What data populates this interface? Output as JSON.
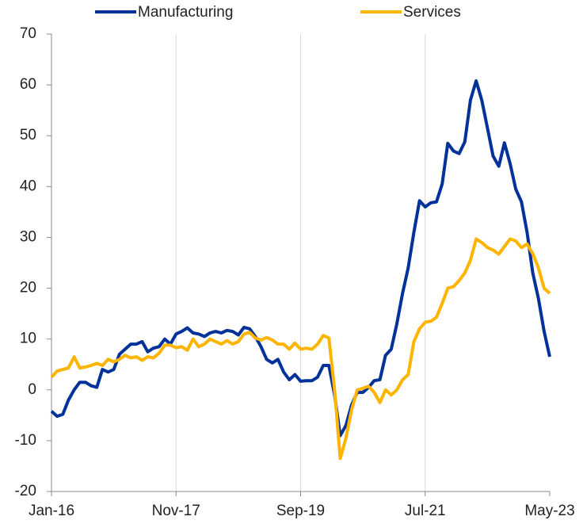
{
  "chart_data": {
    "type": "line",
    "categories": [
      "Jan-16",
      null,
      null,
      null,
      null,
      null,
      null,
      null,
      null,
      null,
      null,
      null,
      null,
      null,
      null,
      null,
      null,
      null,
      null,
      null,
      null,
      null,
      "Nov-17",
      null,
      null,
      null,
      null,
      null,
      null,
      null,
      null,
      null,
      null,
      null,
      null,
      null,
      null,
      null,
      null,
      null,
      null,
      null,
      null,
      null,
      "Sep-19",
      null,
      null,
      null,
      null,
      null,
      null,
      null,
      null,
      null,
      null,
      null,
      null,
      null,
      null,
      null,
      null,
      null,
      null,
      null,
      null,
      null,
      "Jul-21",
      null,
      null,
      null,
      null,
      null,
      null,
      null,
      null,
      null,
      null,
      null,
      null,
      null,
      null,
      null,
      null,
      null,
      null,
      null,
      null,
      null,
      "May-23"
    ],
    "series": [
      {
        "name": "Manufacturing",
        "color": "#003299",
        "values": [
          -4.2,
          -5.2,
          -4.8,
          -2,
          0,
          1.5,
          1.5,
          0.8,
          0.5,
          4,
          3.5,
          4,
          7,
          8,
          9,
          9,
          9.5,
          7.5,
          8.2,
          8.5,
          10,
          9,
          11,
          11.5,
          12.2,
          11.2,
          11,
          10.5,
          11.2,
          11.5,
          11.2,
          11.7,
          11.5,
          10.8,
          12.3,
          12,
          10.5,
          8.5,
          6,
          5.3,
          6,
          3.5,
          2,
          3,
          1.7,
          1.8,
          1.8,
          2.5,
          4.8,
          4.8,
          -1,
          -9,
          -7,
          -3,
          -0.5,
          -0.5,
          0.5,
          1.8,
          2,
          6.8,
          8,
          13,
          19,
          24,
          31,
          37.2,
          36,
          36.8,
          37,
          40.5,
          48.5,
          47,
          46.5,
          48.8,
          57,
          60.8,
          57,
          51.5,
          46,
          44,
          48.6,
          44.5,
          39.5,
          37,
          31,
          23,
          18,
          11.5,
          6.5
        ]
      },
      {
        "name": "Services",
        "color": "#ffb400",
        "values": [
          2.5,
          3.7,
          4,
          4.3,
          6.5,
          4.3,
          4.5,
          4.8,
          5.2,
          4.8,
          6,
          5.5,
          6,
          6.8,
          6.3,
          6.5,
          5.8,
          6.5,
          6.3,
          7.2,
          8.8,
          8.8,
          8.3,
          8.5,
          7.8,
          10,
          8.5,
          9,
          10,
          9.5,
          9,
          9.7,
          9,
          9.5,
          11,
          11.3,
          10.2,
          9.8,
          10.3,
          9.8,
          9,
          9,
          8,
          9.2,
          8,
          8.2,
          8,
          9,
          10.7,
          10.2,
          0,
          -13.5,
          -9.5,
          -4,
          0,
          0.3,
          0.7,
          -0.5,
          -2.5,
          0,
          -1,
          0,
          2,
          3,
          9.5,
          12,
          13.3,
          13.5,
          14.3,
          17,
          20,
          20.3,
          21.5,
          23,
          25.5,
          29.7,
          29,
          28,
          27.5,
          26.7,
          28.2,
          29.7,
          29.3,
          28,
          28.7,
          26.8,
          24,
          20,
          19
        ]
      }
    ],
    "ylim": [
      -20,
      70
    ],
    "yticks": [
      -20,
      -10,
      0,
      10,
      20,
      30,
      40,
      50,
      60,
      70
    ],
    "legend": "top"
  }
}
